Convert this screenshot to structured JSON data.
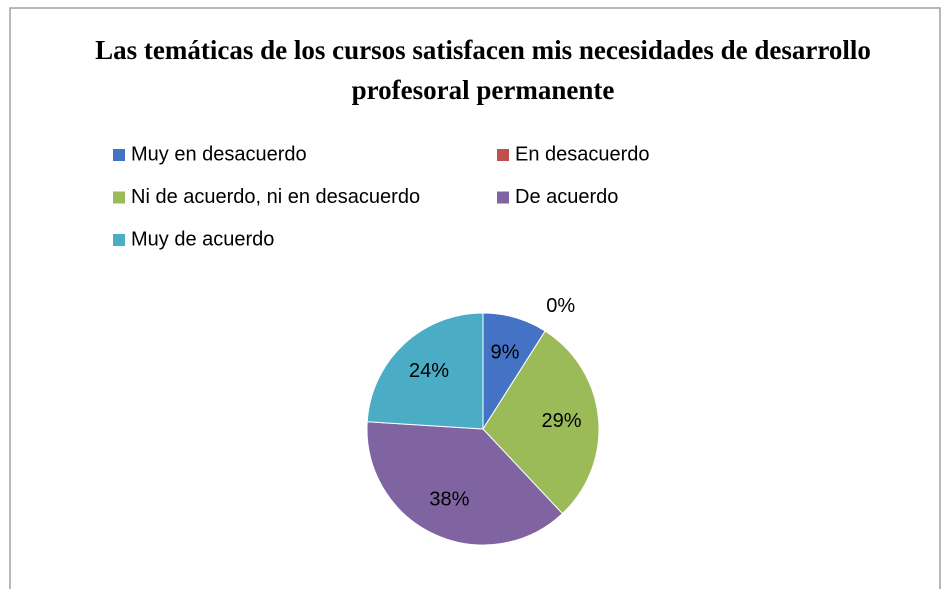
{
  "chart_data": {
    "type": "pie",
    "title": "Las temáticas de los cursos satisfacen mis necesidades de desarrollo profesoral permanente",
    "categories": [
      "Muy en desacuerdo",
      "En desacuerdo",
      "Ni de acuerdo, ni en desacuerdo",
      "De acuerdo",
      "Muy de acuerdo"
    ],
    "values": [
      9,
      0,
      29,
      38,
      24
    ],
    "value_labels": [
      "9%",
      "0%",
      "29%",
      "38%",
      "24%"
    ],
    "colors": [
      "#4472c4",
      "#c0504d",
      "#9bbb59",
      "#8064a2",
      "#4bacc6"
    ],
    "legend": "top"
  }
}
